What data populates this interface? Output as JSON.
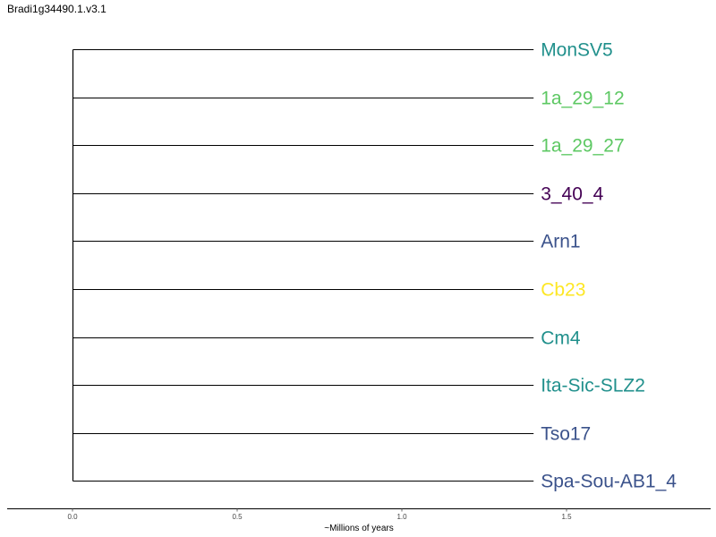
{
  "title": "Bradi1g34490.1.v3.1",
  "tree": {
    "tips": [
      {
        "label": "MonSV5",
        "color": "#21908C"
      },
      {
        "label": "1a_29_12",
        "color": "#5DC863"
      },
      {
        "label": "1a_29_27",
        "color": "#5DC863"
      },
      {
        "label": "3_40_4",
        "color": "#440154"
      },
      {
        "label": "Arn1",
        "color": "#3B528B"
      },
      {
        "label": "Cb23",
        "color": "#FDE725"
      },
      {
        "label": "Cm4",
        "color": "#21908C"
      },
      {
        "label": "Ita-Sic-SLZ2",
        "color": "#21908C"
      },
      {
        "label": "Tso17",
        "color": "#3B528B"
      },
      {
        "label": "Spa-Sou-AB1_4",
        "color": "#3B528B"
      }
    ],
    "branch_length": 1.4,
    "line_color": "#000000"
  },
  "axis": {
    "title": "~Millions of years",
    "ticks": [
      {
        "value": 0.0,
        "label": "0.0"
      },
      {
        "value": 0.5,
        "label": "0.5"
      },
      {
        "value": 1.0,
        "label": "1.0"
      },
      {
        "value": 1.5,
        "label": "1.5"
      }
    ]
  }
}
